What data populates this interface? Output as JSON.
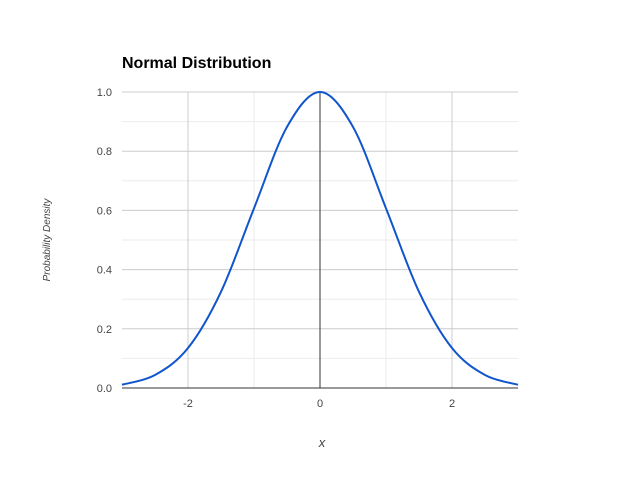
{
  "chart_data": {
    "type": "line",
    "title": "Normal Distribution",
    "xlabel": "x",
    "ylabel": "Probability Density",
    "xlim": [
      -3,
      3
    ],
    "ylim": [
      0,
      1.0
    ],
    "x_ticks": [
      -2,
      0,
      2
    ],
    "y_ticks": [
      0.0,
      0.2,
      0.4,
      0.6,
      0.8,
      1.0
    ],
    "y_tick_labels": [
      "0.0",
      "0.2",
      "0.4",
      "0.6",
      "0.8",
      "1.0"
    ],
    "x_tick_labels": [
      "-2",
      "0",
      "2"
    ],
    "grid": true,
    "legend": "none",
    "series": [
      {
        "color": "#1155cc",
        "x": [
          -3.0,
          -2.5,
          -2.0,
          -1.5,
          -1.0,
          -0.5,
          0.0,
          0.5,
          1.0,
          1.5,
          2.0,
          2.5,
          3.0
        ],
        "values": [
          0.011,
          0.044,
          0.135,
          0.325,
          0.607,
          0.882,
          1.0,
          0.882,
          0.607,
          0.325,
          0.135,
          0.044,
          0.011
        ]
      }
    ],
    "colors": {
      "gridline": "#cccccc",
      "minor_gridline": "#ebebeb",
      "zero_axis": "#333333",
      "baseline": "#333333"
    }
  }
}
